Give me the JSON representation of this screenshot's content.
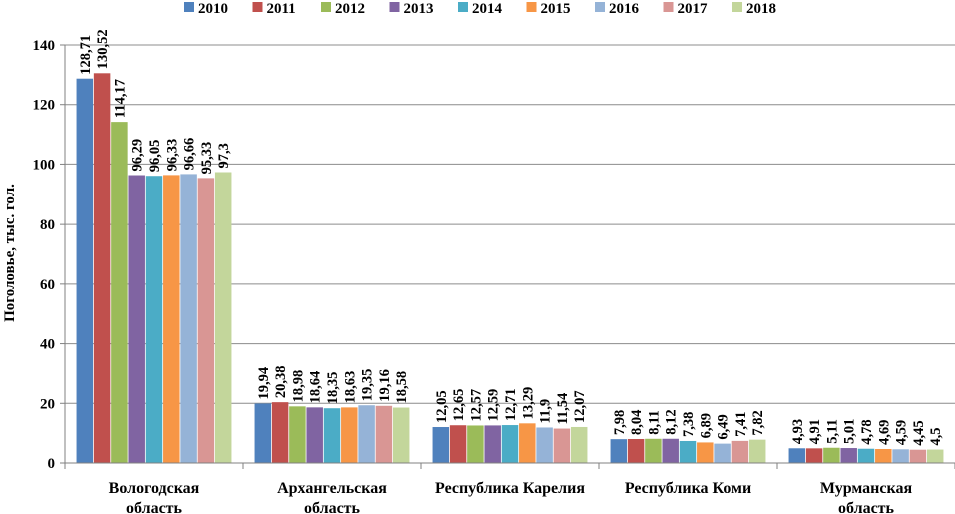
{
  "chart_data": {
    "type": "bar",
    "title": "",
    "xlabel": "",
    "ylabel": "Поголовье, тыс. гол.",
    "ylim": [
      0,
      140
    ],
    "yticks": [
      0,
      20,
      40,
      60,
      80,
      100,
      120,
      140
    ],
    "grid": true,
    "legend_position": "top",
    "categories": [
      [
        "Вологодская",
        "область"
      ],
      [
        "Архангельская",
        "область"
      ],
      [
        "Республика Карелия"
      ],
      [
        "Республика Коми"
      ],
      [
        "Мурманская",
        "область"
      ]
    ],
    "series": [
      {
        "name": "2010",
        "color": "#4F81BD",
        "values": [
          128.71,
          19.94,
          12.05,
          7.98,
          4.93
        ],
        "labels": [
          "128,71",
          "19,94",
          "12,05",
          "7,98",
          "4,93"
        ]
      },
      {
        "name": "2011",
        "color": "#C0504D",
        "values": [
          130.52,
          20.38,
          12.65,
          8.04,
          4.91
        ],
        "labels": [
          "130,52",
          "20,38",
          "12,65",
          "8,04",
          "4,91"
        ]
      },
      {
        "name": "2012",
        "color": "#9BBB59",
        "values": [
          114.17,
          18.98,
          12.57,
          8.11,
          5.11
        ],
        "labels": [
          "114,17",
          "18,98",
          "12,57",
          "8,11",
          "5,11"
        ]
      },
      {
        "name": "2013",
        "color": "#8064A2",
        "values": [
          96.29,
          18.64,
          12.59,
          8.12,
          5.01
        ],
        "labels": [
          "96,29",
          "18,64",
          "12,59",
          "8,12",
          "5,01"
        ]
      },
      {
        "name": "2014",
        "color": "#4BACC6",
        "values": [
          96.05,
          18.35,
          12.71,
          7.38,
          4.78
        ],
        "labels": [
          "96,05",
          "18,35",
          "12,71",
          "7,38",
          "4,78"
        ]
      },
      {
        "name": "2015",
        "color": "#F79646",
        "values": [
          96.33,
          18.63,
          13.29,
          6.89,
          4.69
        ],
        "labels": [
          "96,33",
          "18,63",
          "13,29",
          "6,89",
          "4,69"
        ]
      },
      {
        "name": "2016",
        "color": "#95B3D7",
        "values": [
          96.66,
          19.35,
          11.9,
          6.49,
          4.59
        ],
        "labels": [
          "96,66",
          "19,35",
          "11,9",
          "6,49",
          "4,59"
        ]
      },
      {
        "name": "2017",
        "color": "#D99694",
        "values": [
          95.33,
          19.16,
          11.54,
          7.41,
          4.45
        ],
        "labels": [
          "95,33",
          "19,16",
          "11,54",
          "7,41",
          "4,45"
        ]
      },
      {
        "name": "2018",
        "color": "#C3D69B",
        "values": [
          97.3,
          18.58,
          12.07,
          7.82,
          4.5
        ],
        "labels": [
          "97,3",
          "18,58",
          "12,07",
          "7,82",
          "4,5"
        ]
      }
    ]
  }
}
